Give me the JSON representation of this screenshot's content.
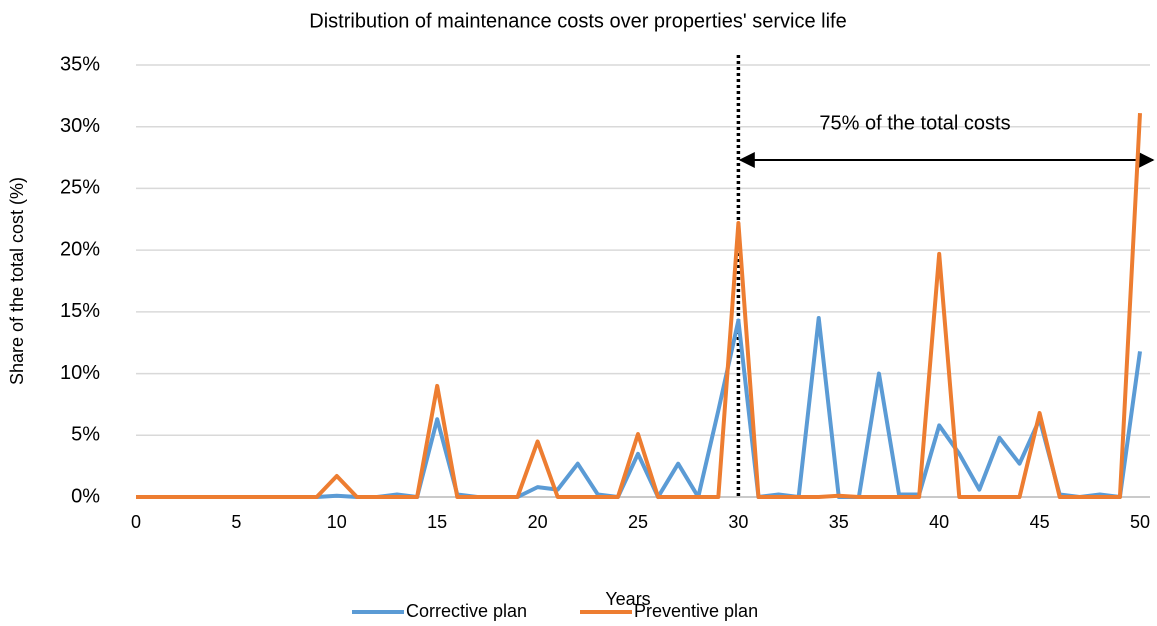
{
  "chart_data": {
    "type": "line",
    "title": "Distribution of maintenance costs over properties' service life",
    "x_label": "Years",
    "y_label": "Share of the total cost (%)",
    "x": [
      0,
      1,
      2,
      3,
      4,
      5,
      6,
      7,
      8,
      9,
      10,
      11,
      12,
      13,
      14,
      15,
      16,
      17,
      18,
      19,
      20,
      21,
      22,
      23,
      24,
      25,
      26,
      27,
      28,
      29,
      30,
      31,
      32,
      33,
      34,
      35,
      36,
      37,
      38,
      39,
      40,
      41,
      42,
      43,
      44,
      45,
      46,
      47,
      48,
      49,
      50
    ],
    "series": [
      {
        "name": "Corrective plan",
        "color": "#5b9bd5",
        "values": [
          0,
          0,
          0,
          0,
          0,
          0,
          0,
          0,
          0,
          0,
          0.1,
          0,
          0,
          0.2,
          0,
          6.3,
          0.2,
          0,
          0,
          0,
          0.8,
          0.6,
          2.7,
          0.2,
          0,
          3.5,
          0,
          2.7,
          0,
          7,
          14.3,
          0,
          0.2,
          0,
          14.5,
          0,
          0,
          10,
          0.2,
          0.2,
          5.8,
          3.5,
          0.6,
          4.8,
          2.7,
          6.3,
          0.2,
          0,
          0.2,
          0,
          11.8
        ]
      },
      {
        "name": "Preventive plan",
        "color": "#ed7d31",
        "values": [
          0,
          0,
          0,
          0,
          0,
          0,
          0,
          0,
          0,
          0,
          1.7,
          0,
          0,
          0,
          0,
          9,
          0,
          0,
          0,
          0,
          4.5,
          0,
          0,
          0,
          0,
          5.1,
          0,
          0,
          0,
          0,
          22.2,
          0,
          0,
          0,
          0,
          0.1,
          0,
          0,
          0,
          0,
          19.7,
          0,
          0,
          0,
          0,
          6.8,
          0,
          0,
          0,
          0,
          31.1
        ]
      }
    ],
    "xlim": [
      0,
      50
    ],
    "xticks": [
      0,
      5,
      10,
      15,
      20,
      25,
      30,
      35,
      40,
      45,
      50
    ],
    "ylim": [
      0,
      35
    ],
    "yticks": [
      {
        "value": 0,
        "label": "0%"
      },
      {
        "value": 5,
        "label": "5%"
      },
      {
        "value": 10,
        "label": "10%"
      },
      {
        "value": 15,
        "label": "15%"
      },
      {
        "value": 20,
        "label": "20%"
      },
      {
        "value": 25,
        "label": "25%"
      },
      {
        "value": 30,
        "label": "30%"
      },
      {
        "value": 35,
        "label": "35%"
      }
    ],
    "grid": true,
    "legend": "bottom",
    "annotations": [
      {
        "text": "75% of the total costs",
        "x": 30
      }
    ]
  }
}
